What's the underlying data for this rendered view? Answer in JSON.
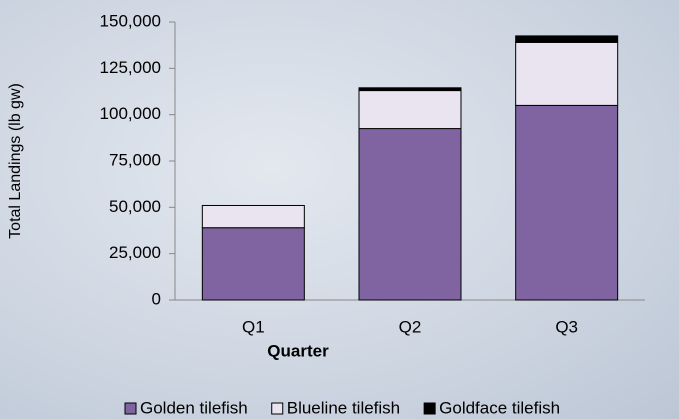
{
  "chart_data": {
    "type": "stacked-bar",
    "xlabel": "Quarter",
    "ylabel": "Total Landings (lb gw)",
    "categories": [
      "Q1",
      "Q2",
      "Q3"
    ],
    "series": [
      {
        "name": "Golden tilefish",
        "color": "#8064a2",
        "values": [
          39000,
          92500,
          105000
        ]
      },
      {
        "name": "Blueline tilefish",
        "color": "#e9e4f0",
        "values": [
          12000,
          20500,
          34000
        ]
      },
      {
        "name": "Goldface tilefish",
        "color": "#000000",
        "values": [
          0,
          1500,
          3500
        ]
      }
    ],
    "ylim": [
      0,
      150000
    ],
    "yticks": [
      0,
      {
        "value": 25000,
        "label": "25,000"
      },
      {
        "value": 50000,
        "label": "50,000"
      },
      {
        "value": 75000,
        "label": "75,000"
      },
      {
        "value": 100000,
        "label": "100,000"
      },
      {
        "value": 125000,
        "label": "125,000"
      },
      {
        "value": 150000,
        "label": "150,000"
      }
    ],
    "legend": "bottom"
  }
}
